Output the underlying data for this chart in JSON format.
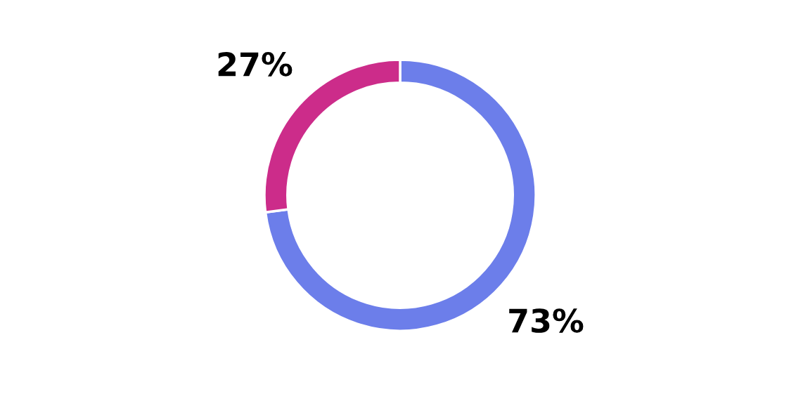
{
  "chart_data": {
    "type": "donut",
    "categories": [
      null,
      null
    ],
    "values": [
      73,
      27
    ],
    "colors": [
      "#6c7eea",
      "#cc2c8a"
    ],
    "value_labels": [
      "73%",
      "27%"
    ]
  }
}
